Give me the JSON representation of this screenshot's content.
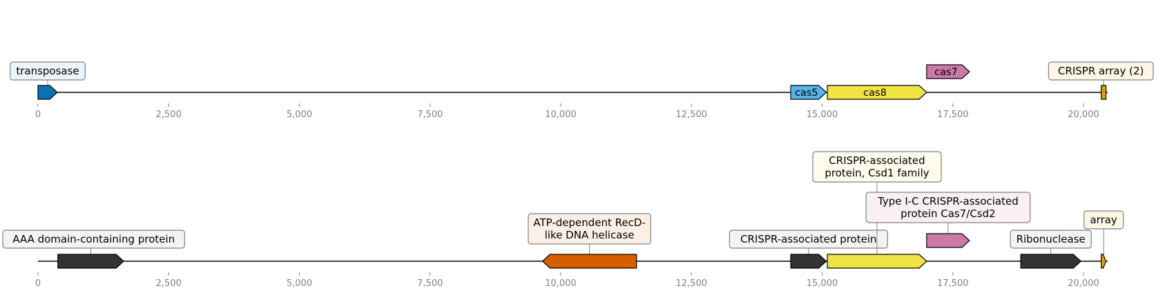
{
  "figure": {
    "type": "gene-locus-map",
    "axis_ticks": [
      "0",
      "2,500",
      "5,000",
      "7,500",
      "10,000",
      "12,500",
      "15,000",
      "17,500",
      "20,000"
    ],
    "tick_values": [
      0,
      2500,
      5000,
      7500,
      10000,
      12500,
      15000,
      17500,
      20000
    ],
    "x_range": [
      0,
      20400
    ]
  },
  "tracks": [
    {
      "name": "top-locus",
      "genes": [
        {
          "id": "g1",
          "start": 0,
          "end": 370,
          "strand": "+",
          "color": "#0A72B2",
          "callout": [
            "transposase"
          ],
          "callout_bg": "#EBF4FB"
        },
        {
          "id": "g2",
          "start": 14400,
          "end": 15080,
          "strand": "+",
          "color": "#56B4E9",
          "label": "cas5"
        },
        {
          "id": "g3",
          "start": 15100,
          "end": 17000,
          "strand": "+",
          "color": "#F0E442",
          "label": "cas8"
        },
        {
          "id": "g4",
          "start": 17000,
          "end": 17820,
          "strand": "+",
          "color": "#CC79A7",
          "label": "cas7",
          "raised": true
        },
        {
          "id": "g5",
          "start": 20340,
          "end": 20430,
          "strand": "none",
          "color": "#E69F00",
          "callout": [
            "CRISPR array (2)"
          ],
          "callout_bg": "#FDF6E6"
        }
      ]
    },
    {
      "name": "bottom-locus",
      "genes": [
        {
          "id": "h1",
          "start": 380,
          "end": 1640,
          "strand": "+",
          "color": "#333333",
          "callout": [
            "AAA domain-containing protein"
          ],
          "callout_bg": "#F3F3F3"
        },
        {
          "id": "h2",
          "start": 9650,
          "end": 11450,
          "strand": "-",
          "color": "#D55E00",
          "callout": [
            "ATP-dependent RecD-",
            "like DNA helicase"
          ],
          "callout_bg": "#FCEFE6"
        },
        {
          "id": "h3",
          "start": 14400,
          "end": 15080,
          "strand": "+",
          "color": "#333333",
          "callout": [
            "CRISPR-associated protein"
          ],
          "callout_bg": "#F3F3F3"
        },
        {
          "id": "h4",
          "start": 15100,
          "end": 17000,
          "strand": "+",
          "color": "#F0E442",
          "callout": [
            "CRISPR-associated",
            "protein, Csd1 family"
          ],
          "callout_bg": "#FDFCEC"
        },
        {
          "id": "h5",
          "start": 17000,
          "end": 17820,
          "strand": "+",
          "color": "#CC79A7",
          "raised": true,
          "callout": [
            "Type I-C CRISPR-associated",
            "protein Cas7/Csd2"
          ],
          "callout_bg": "#F9EFF5"
        },
        {
          "id": "h6",
          "start": 18800,
          "end": 19950,
          "strand": "+",
          "color": "#333333",
          "callout": [
            "Ribonuclease"
          ],
          "callout_bg": "#F3F3F3"
        },
        {
          "id": "h7",
          "start": 20340,
          "end": 20430,
          "strand": "+",
          "color": "#E69F00",
          "callout": [
            "array"
          ],
          "callout_bg": "#FDF6E6"
        }
      ]
    }
  ]
}
